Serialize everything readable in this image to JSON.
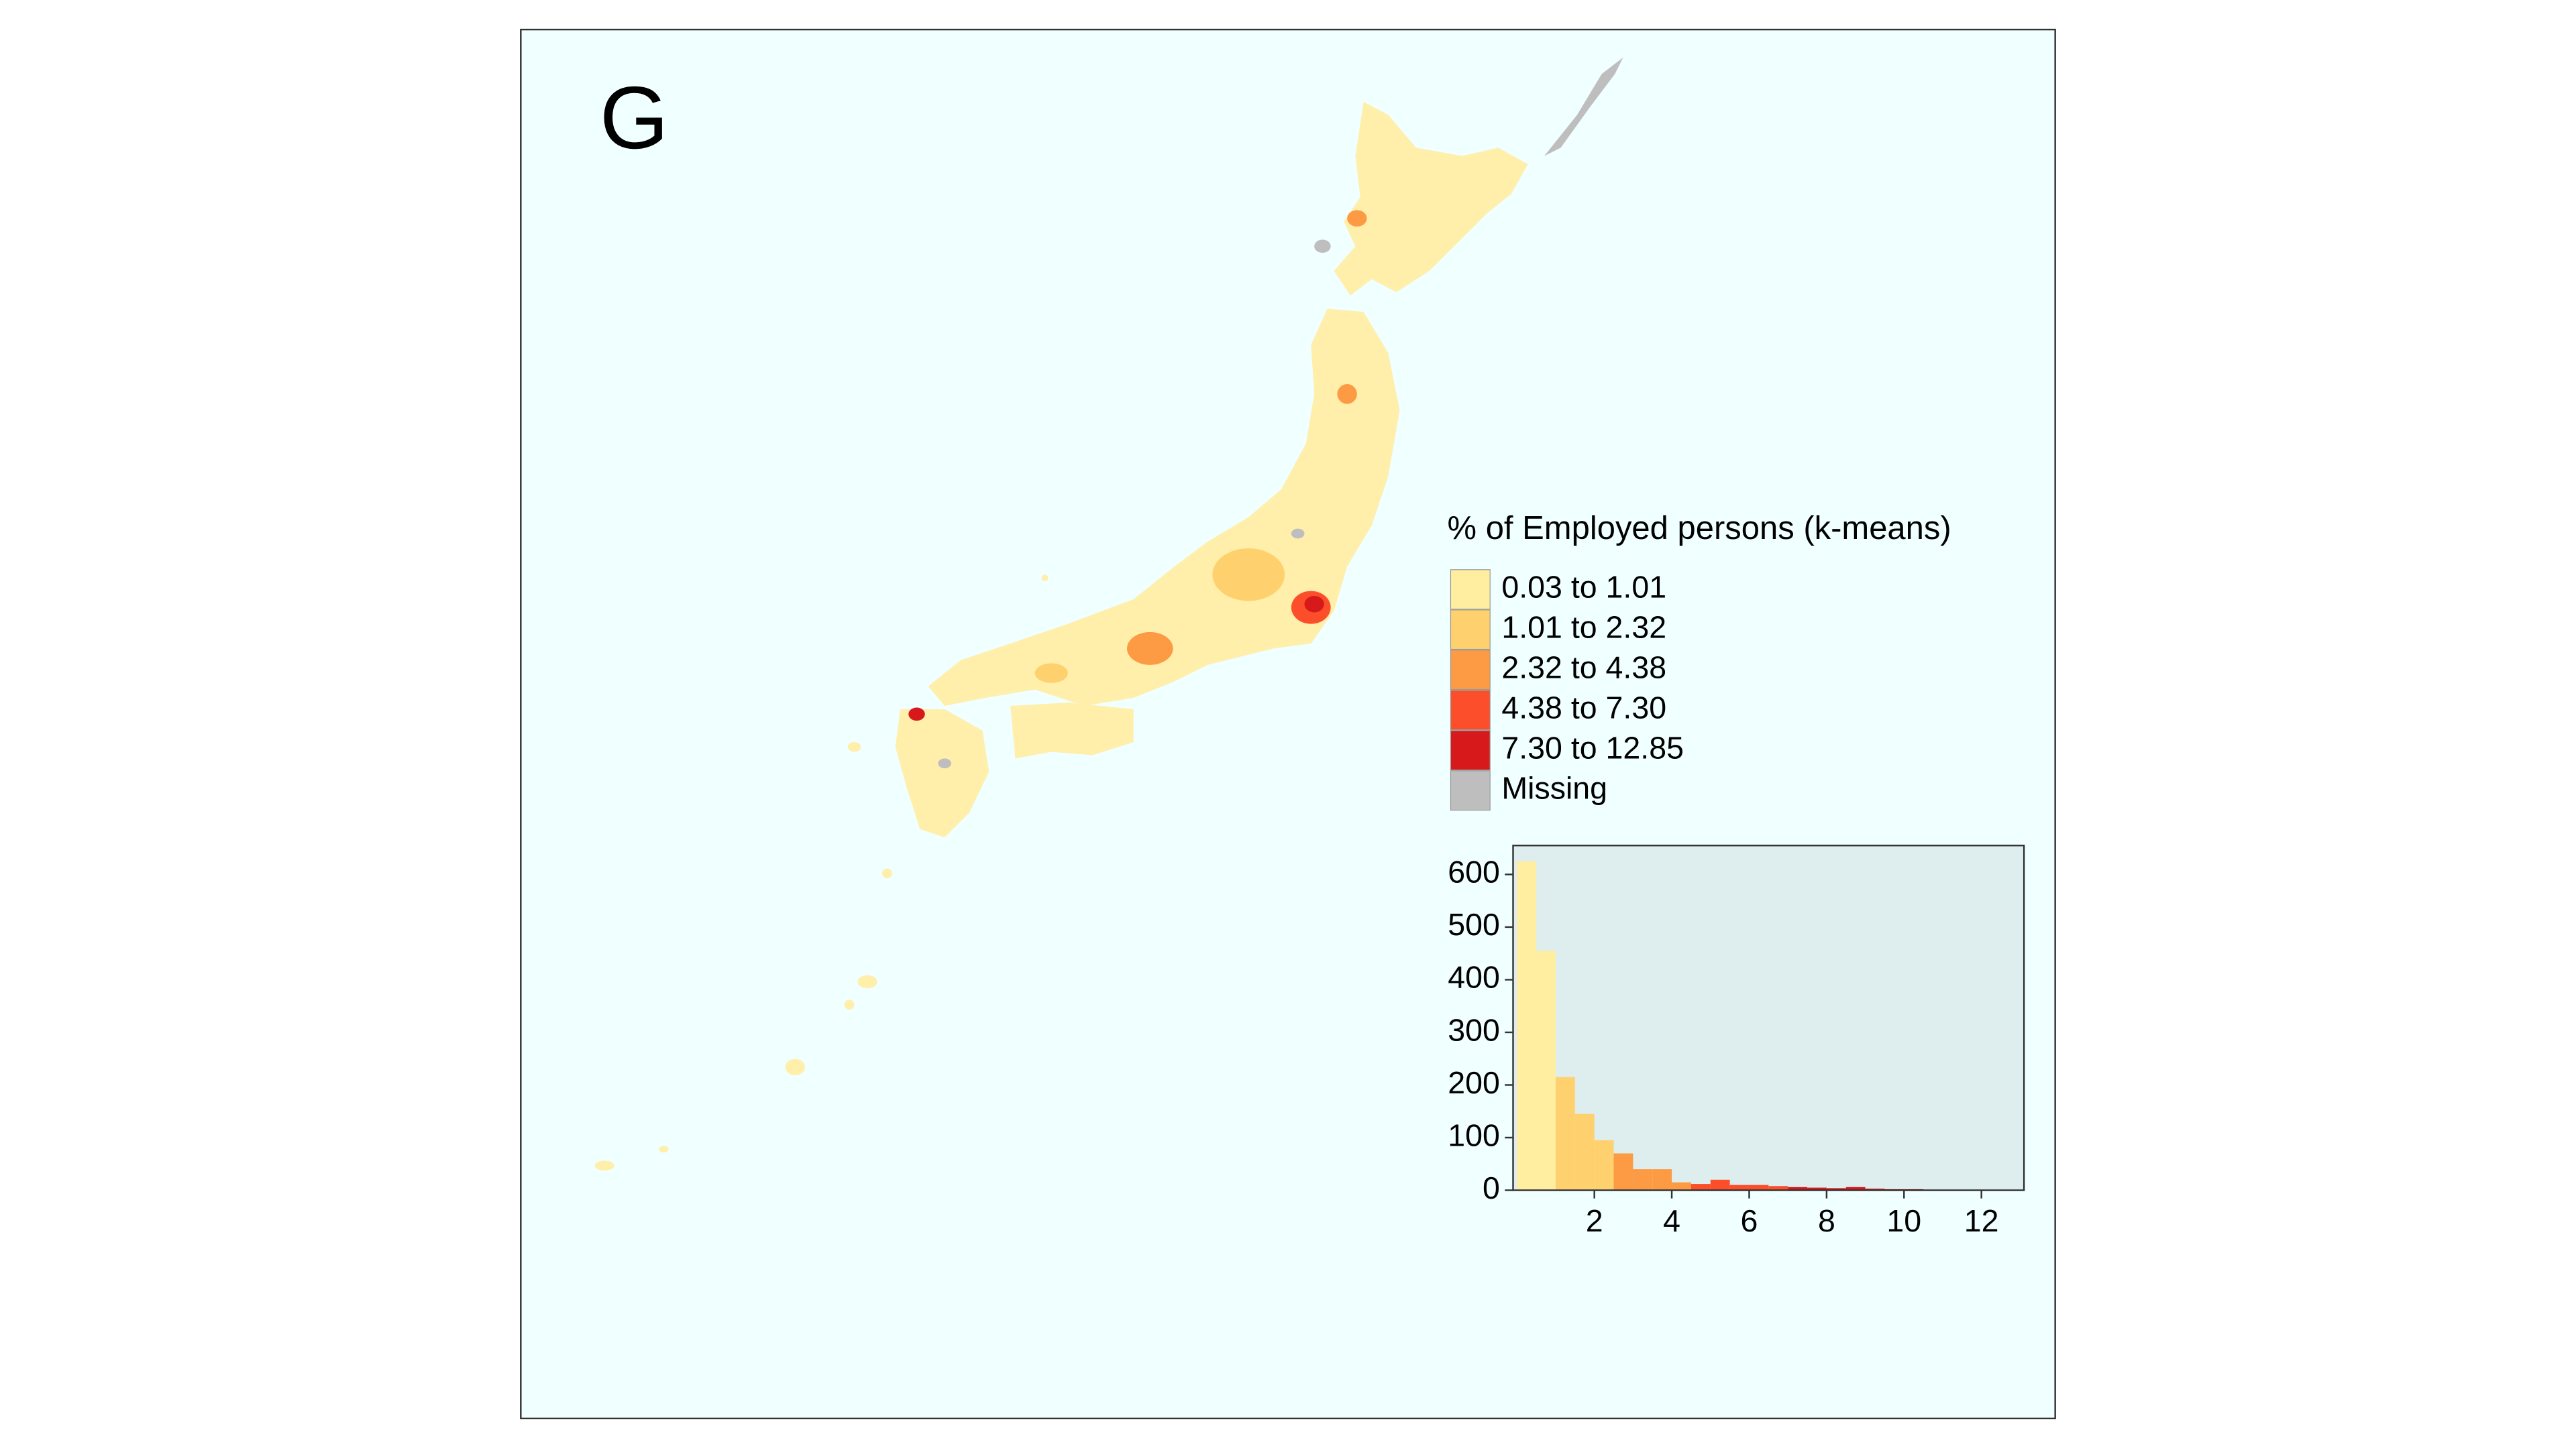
{
  "panel_label": "G",
  "legend": {
    "title": "% of Employed persons (k-means)",
    "items": [
      {
        "label": "0.03 to 1.01",
        "color": "#ffeda0"
      },
      {
        "label": "1.01 to 2.32",
        "color": "#fed16e"
      },
      {
        "label": "2.32 to 4.38",
        "color": "#fd9a44"
      },
      {
        "label": "4.38 to 7.30",
        "color": "#fc4e2a"
      },
      {
        "label": "7.30 to 12.85",
        "color": "#d7191c"
      },
      {
        "label": "Missing",
        "color": "#bebebe"
      }
    ]
  },
  "chart_data": {
    "type": "histogram",
    "bins": [
      0,
      0.5,
      1,
      1.5,
      2,
      2.5,
      3,
      3.5,
      4,
      4.5,
      5,
      5.5,
      6,
      6.5,
      7,
      7.5,
      8,
      8.5,
      9,
      9.5,
      10,
      10.5,
      11,
      11.5,
      12,
      12.5,
      13
    ],
    "counts": [
      625,
      455,
      215,
      145,
      95,
      70,
      40,
      40,
      15,
      12,
      20,
      10,
      10,
      8,
      6,
      5,
      4,
      6,
      3,
      2,
      2,
      1,
      1,
      1,
      1,
      1
    ],
    "colors": [
      "#ffeda0",
      "#ffeda0",
      "#fed16e",
      "#fed16e",
      "#fed16e",
      "#fd9a44",
      "#fd9a44",
      "#fd9a44",
      "#fd9a44",
      "#fc4e2a",
      "#fc4e2a",
      "#fc4e2a",
      "#fc4e2a",
      "#fc4e2a",
      "#d7191c",
      "#d7191c",
      "#d7191c",
      "#d7191c",
      "#d7191c",
      "#d7191c",
      "#d7191c",
      "#d7191c",
      "#d7191c",
      "#d7191c",
      "#d7191c",
      "#d7191c"
    ],
    "xlim": [
      -0.1,
      13.1
    ],
    "ylim": [
      0,
      655
    ],
    "xticks": [
      2,
      4,
      6,
      8,
      10,
      12
    ],
    "yticks": [
      0,
      100,
      200,
      300,
      400,
      500,
      600
    ],
    "background": "#deeded"
  }
}
